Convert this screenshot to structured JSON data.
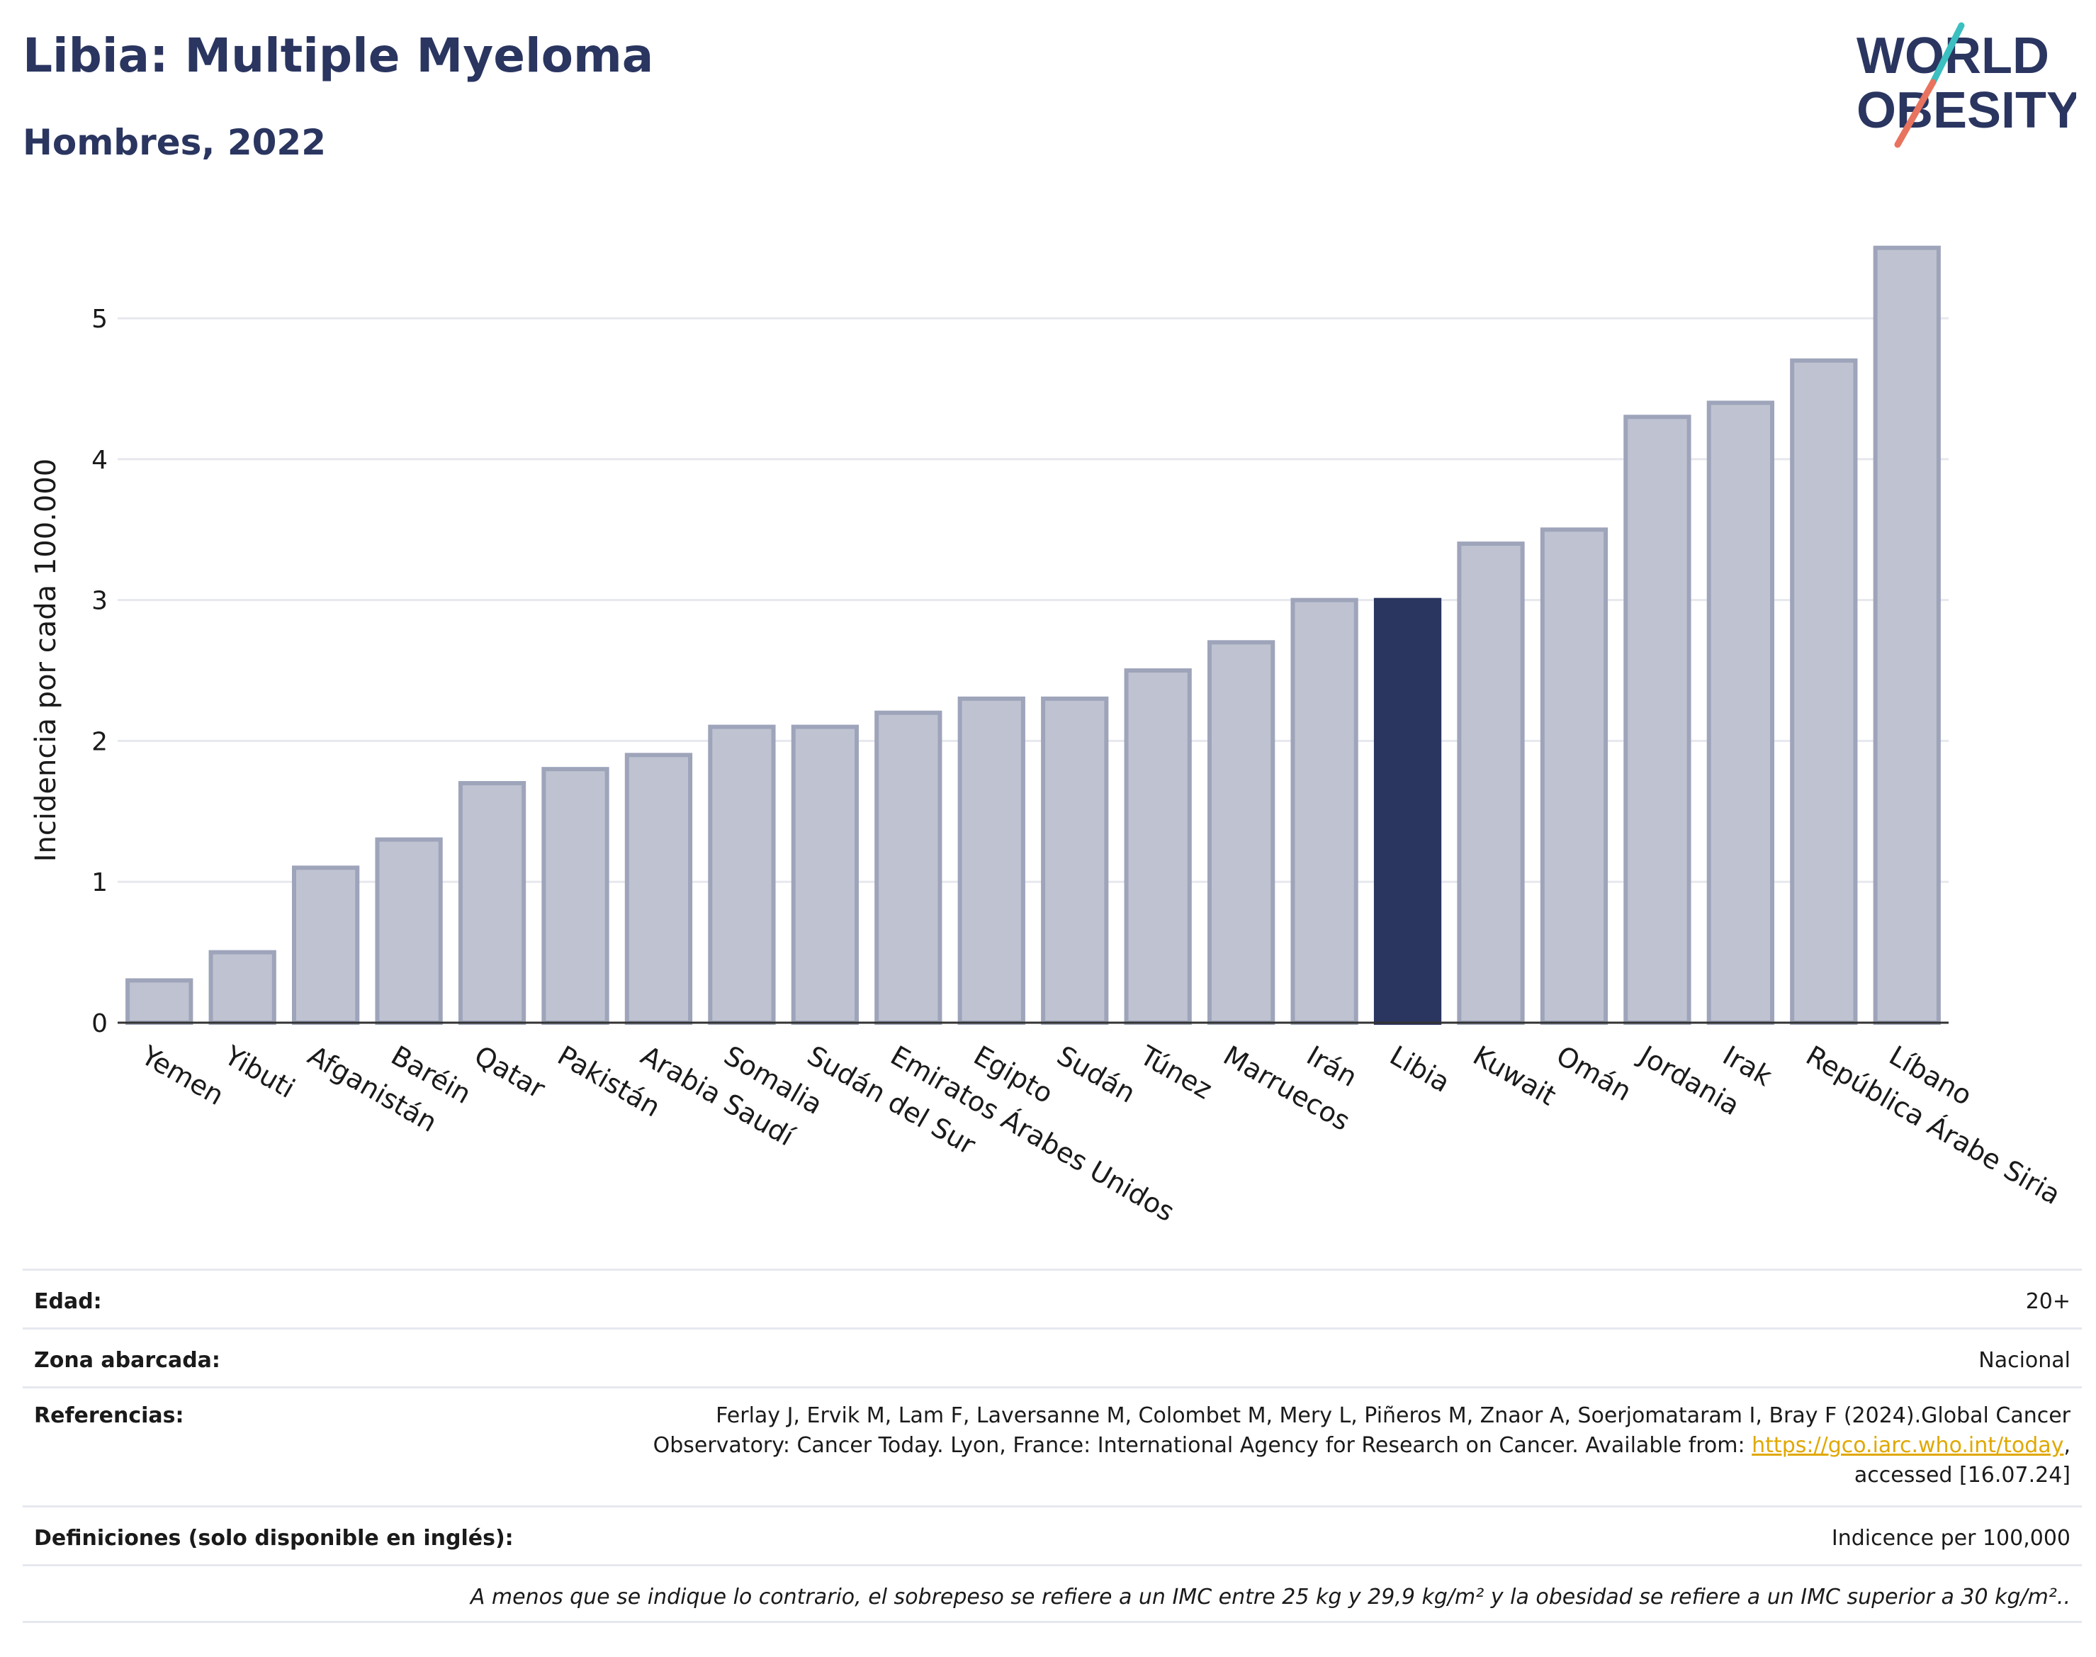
{
  "header": {
    "title": "Libia: Multiple Myeloma",
    "subtitle": "Hombres, 2022"
  },
  "logo": {
    "line1": "WORLD",
    "line2": "OBESITY",
    "colors": {
      "text": "#2a3560",
      "teal": "#3cbfc0",
      "coral": "#e8735f"
    }
  },
  "chart_data": {
    "type": "bar",
    "ylabel": "Incidencia por cada 100.000",
    "ylim": [
      0,
      5.75
    ],
    "yticks": [
      0,
      1,
      2,
      3,
      4,
      5
    ],
    "grid": true,
    "highlight": "Libia",
    "colors": {
      "bar": "#bfc3d1",
      "bar_edge": "#9ea4ba",
      "highlight": "#2a3560",
      "grid": "#e7e8ee",
      "axis": "#333333"
    },
    "categories": [
      "Yemen",
      "Yibuti",
      "Afganistán",
      "Baréin",
      "Qatar",
      "Pakistán",
      "Arabia Saudí",
      "Somalia",
      "Sudán del Sur",
      "Emiratos Árabes Unidos",
      "Egipto",
      "Sudán",
      "Túnez",
      "Marruecos",
      "Irán",
      "Libia",
      "Kuwait",
      "Omán",
      "Jordania",
      "Irak",
      "República Árabe Siria",
      "Líbano"
    ],
    "values": [
      0.3,
      0.5,
      1.1,
      1.3,
      1.7,
      1.8,
      1.9,
      2.1,
      2.1,
      2.2,
      2.3,
      2.3,
      2.5,
      2.7,
      3.0,
      3.0,
      3.4,
      3.5,
      4.3,
      4.4,
      4.7,
      5.5
    ]
  },
  "info": {
    "age_label": "Edad:",
    "age_value": "20+",
    "area_label": "Zona abarcada:",
    "area_value": "Nacional",
    "refs_label": "Referencias:",
    "refs_line1": "Ferlay J, Ervik M, Lam F, Laversanne M, Colombet M, Mery L, Piñeros M, Znaor A, Soerjomataram I, Bray F (2024).Global Cancer",
    "refs_line2_pre": "Observatory: Cancer Today. Lyon, France: International Agency for Research on Cancer. Available from: ",
    "refs_link": "https://gco.iarc.who.int/today",
    "refs_line2_post": ",",
    "refs_line3": "accessed [16.07.24]",
    "defs_label": "Definiciones (solo disponible en inglés):",
    "defs_value": "Indicence per 100,000",
    "note": "A menos que se indique lo contrario, el sobrepeso se refiere a un IMC entre 25 kg y 29,9 kg/m² y la obesidad se refiere a un IMC superior a 30 kg/m².."
  }
}
